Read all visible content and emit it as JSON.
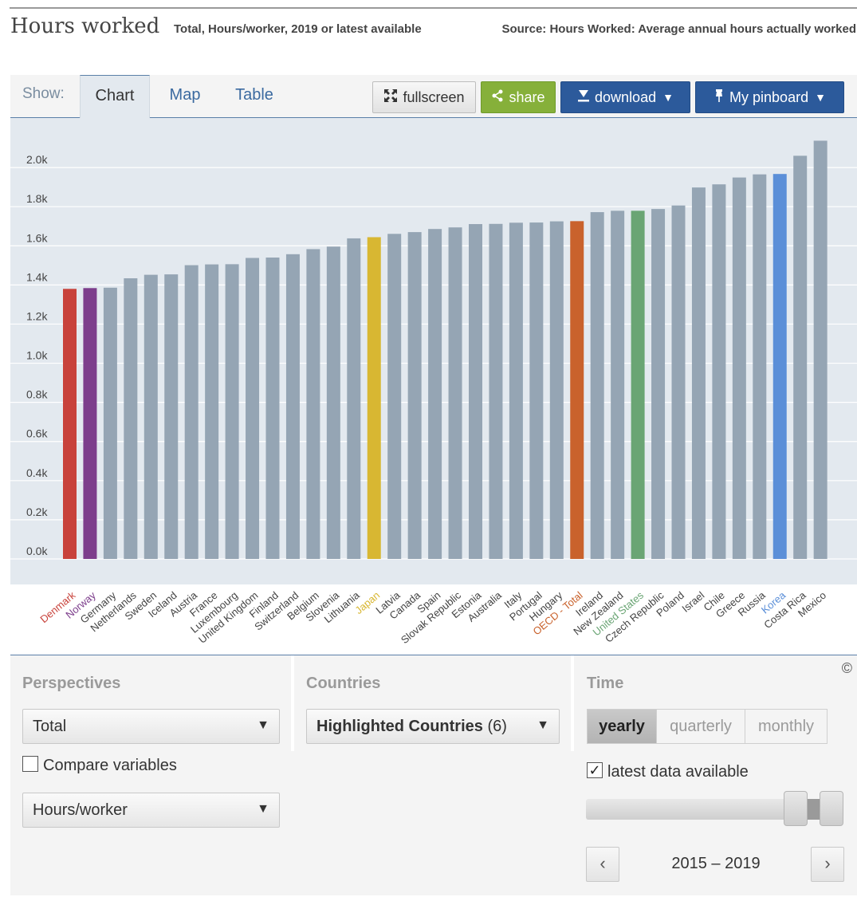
{
  "header": {
    "title": "Hours worked",
    "subtitle": "Total, Hours/worker, 2019 or latest available",
    "source": "Source: Hours Worked: Average annual hours actually worked"
  },
  "toolbar": {
    "show_label": "Show:",
    "tabs": [
      "Chart",
      "Map",
      "Table"
    ],
    "fullscreen": "fullscreen",
    "share": "share",
    "download": "download",
    "pinboard": "My pinboard",
    "caret": "▼"
  },
  "chart_data": {
    "type": "bar",
    "categories": [
      "Denmark",
      "Norway",
      "Germany",
      "Netherlands",
      "Sweden",
      "Iceland",
      "Austria",
      "France",
      "Luxembourg",
      "United Kingdom",
      "Finland",
      "Switzerland",
      "Belgium",
      "Slovenia",
      "Lithuania",
      "Japan",
      "Latvia",
      "Canada",
      "Spain",
      "Slovak Republic",
      "Estonia",
      "Australia",
      "Italy",
      "Portugal",
      "Hungary",
      "OECD - Total",
      "Ireland",
      "New Zealand",
      "United States",
      "Czech Republic",
      "Poland",
      "Israel",
      "Chile",
      "Greece",
      "Russia",
      "Korea",
      "Costa Rica",
      "Mexico"
    ],
    "values": [
      1380,
      1384,
      1386,
      1434,
      1452,
      1454,
      1501,
      1505,
      1506,
      1538,
      1540,
      1557,
      1583,
      1596,
      1638,
      1644,
      1661,
      1670,
      1686,
      1694,
      1711,
      1712,
      1718,
      1719,
      1725,
      1726,
      1772,
      1779,
      1779,
      1788,
      1806,
      1898,
      1914,
      1949,
      1965,
      1967,
      2060,
      2137
    ],
    "colors": [
      "#c8423b",
      "#7d3e8c",
      "#95a5b4",
      "#95a5b4",
      "#95a5b4",
      "#95a5b4",
      "#95a5b4",
      "#95a5b4",
      "#95a5b4",
      "#95a5b4",
      "#95a5b4",
      "#95a5b4",
      "#95a5b4",
      "#95a5b4",
      "#95a5b4",
      "#d8b732",
      "#95a5b4",
      "#95a5b4",
      "#95a5b4",
      "#95a5b4",
      "#95a5b4",
      "#95a5b4",
      "#95a5b4",
      "#95a5b4",
      "#95a5b4",
      "#c9622c",
      "#95a5b4",
      "#95a5b4",
      "#6aa574",
      "#95a5b4",
      "#95a5b4",
      "#95a5b4",
      "#95a5b4",
      "#95a5b4",
      "#95a5b4",
      "#5b8fd8",
      "#95a5b4",
      "#95a5b4"
    ],
    "label_colors": [
      "#c8423b",
      "#7d3e8c",
      "#444444",
      "#444444",
      "#444444",
      "#444444",
      "#444444",
      "#444444",
      "#444444",
      "#444444",
      "#444444",
      "#444444",
      "#444444",
      "#444444",
      "#444444",
      "#d8b732",
      "#444444",
      "#444444",
      "#444444",
      "#444444",
      "#444444",
      "#444444",
      "#444444",
      "#444444",
      "#444444",
      "#c9622c",
      "#444444",
      "#444444",
      "#6aa574",
      "#444444",
      "#444444",
      "#444444",
      "#444444",
      "#444444",
      "#444444",
      "#5b8fd8",
      "#444444",
      "#444444"
    ],
    "ylim": [
      0,
      2200
    ],
    "yticks": [
      0,
      200,
      400,
      600,
      800,
      1000,
      1200,
      1400,
      1600,
      1800,
      2000
    ],
    "ytick_labels": [
      "0.0k",
      "0.2k",
      "0.4k",
      "0.6k",
      "0.8k",
      "1.0k",
      "1.2k",
      "1.4k",
      "1.6k",
      "1.8k",
      "2.0k"
    ],
    "grid": true,
    "xlabel": "",
    "ylabel": ""
  },
  "controls": {
    "perspectives_label": "Perspectives",
    "perspective_value": "Total",
    "compare_label": "Compare variables",
    "measure_value": "Hours/worker",
    "countries_label": "Countries",
    "countries_value": "Highlighted Countries",
    "countries_count": "(6)",
    "time_label": "Time",
    "time_options": [
      "yearly",
      "quarterly",
      "monthly"
    ],
    "latest_label": "latest data available",
    "latest_check": "✓",
    "range_text": "2015 – 2019",
    "prev": "‹",
    "next": "›",
    "copyright": "©",
    "arrow": "▼"
  }
}
